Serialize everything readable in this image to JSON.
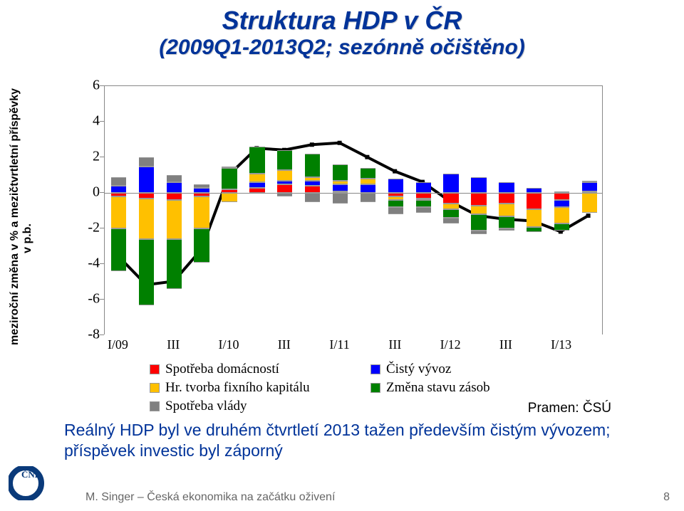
{
  "title": {
    "line1": "Struktura HDP v ČR",
    "line2": "(2009Q1-2013Q2; sezónně očištěno)"
  },
  "chart": {
    "type": "stacked-bar-with-line",
    "ylabel": "meziroční změna v % a mezičtvrtletní příspěvky\nv p.b.",
    "ylim": [
      -8,
      6
    ],
    "ytick_step": 2,
    "x_labels": [
      "I/09",
      "III",
      "I/10",
      "III",
      "I/11",
      "III",
      "I/12",
      "III",
      "I/13"
    ],
    "x_label_at": [
      0,
      2,
      4,
      6,
      8,
      10,
      12,
      14,
      16
    ],
    "colors": {
      "spotreba_domacnosti": "#ff0000",
      "cisty_vyvoz": "#0000ff",
      "hr_tvorba_fix_kap": "#ffc000",
      "zmena_stavu_zasob": "#008000",
      "spotreba_vlady": "#808080",
      "line": "#000000",
      "background": "#ffffff",
      "border": "#888888"
    },
    "legend": [
      {
        "label": "Spotřeba domácností",
        "color": "#ff0000"
      },
      {
        "label": "Čistý vývoz",
        "color": "#0000ff"
      },
      {
        "label": "Hr. tvorba fixního kapitálu",
        "color": "#ffc000"
      },
      {
        "label": "Změna stavu zásob",
        "color": "#008000"
      },
      {
        "label": "Spotřeba vlády",
        "color": "#808080"
      }
    ],
    "periods": 18,
    "series": {
      "spotreba_domacnosti": [
        -0.2,
        -0.3,
        -0.4,
        -0.2,
        0.2,
        0.3,
        0.5,
        0.4,
        0.1,
        0.0,
        -0.2,
        -0.3,
        -0.6,
        -0.7,
        -0.6,
        -0.9,
        -0.4,
        0.1
      ],
      "cisty_vyvoz": [
        0.4,
        1.5,
        0.6,
        0.3,
        0.0,
        0.3,
        0.2,
        0.3,
        0.4,
        0.5,
        0.8,
        0.6,
        1.1,
        0.9,
        0.6,
        0.3,
        -0.4,
        0.5
      ],
      "hr_tvorba_fix_kap": [
        -1.8,
        -2.3,
        -2.2,
        -1.8,
        -0.5,
        0.5,
        0.6,
        0.2,
        0.2,
        0.3,
        -0.2,
        -0.1,
        -0.3,
        -0.5,
        -0.7,
        -1.0,
        -0.9,
        -1.1
      ],
      "zmena_stavu_zasob": [
        -2.4,
        -3.7,
        -2.8,
        -1.9,
        1.2,
        1.5,
        1.1,
        1.3,
        0.9,
        0.6,
        -0.4,
        -0.4,
        -0.5,
        -0.9,
        -0.7,
        -0.3,
        -0.4,
        0.0
      ],
      "spotreba_vlady": [
        0.5,
        0.5,
        0.4,
        0.2,
        0.1,
        0.0,
        -0.2,
        -0.5,
        -0.6,
        -0.5,
        -0.4,
        -0.3,
        -0.3,
        -0.2,
        -0.1,
        0.0,
        0.1,
        0.1
      ],
      "line": [
        -3.6,
        -5.2,
        -5.0,
        -3.2,
        1.0,
        2.5,
        2.4,
        2.7,
        2.8,
        2.0,
        1.2,
        0.6,
        -0.5,
        -1.3,
        -1.5,
        -1.6,
        -2.2,
        -1.3
      ]
    },
    "line_width": 4,
    "bar_width_ratio": 0.55
  },
  "source_label": "Pramen: ČSÚ",
  "body_text": "Reálný HDP byl ve druhém čtvrtletí 2013 tažen především čistým vývozem; příspěvek investic byl záporný",
  "footer": "M. Singer – Česká ekonomika na začátku oživení",
  "page_number": "8"
}
